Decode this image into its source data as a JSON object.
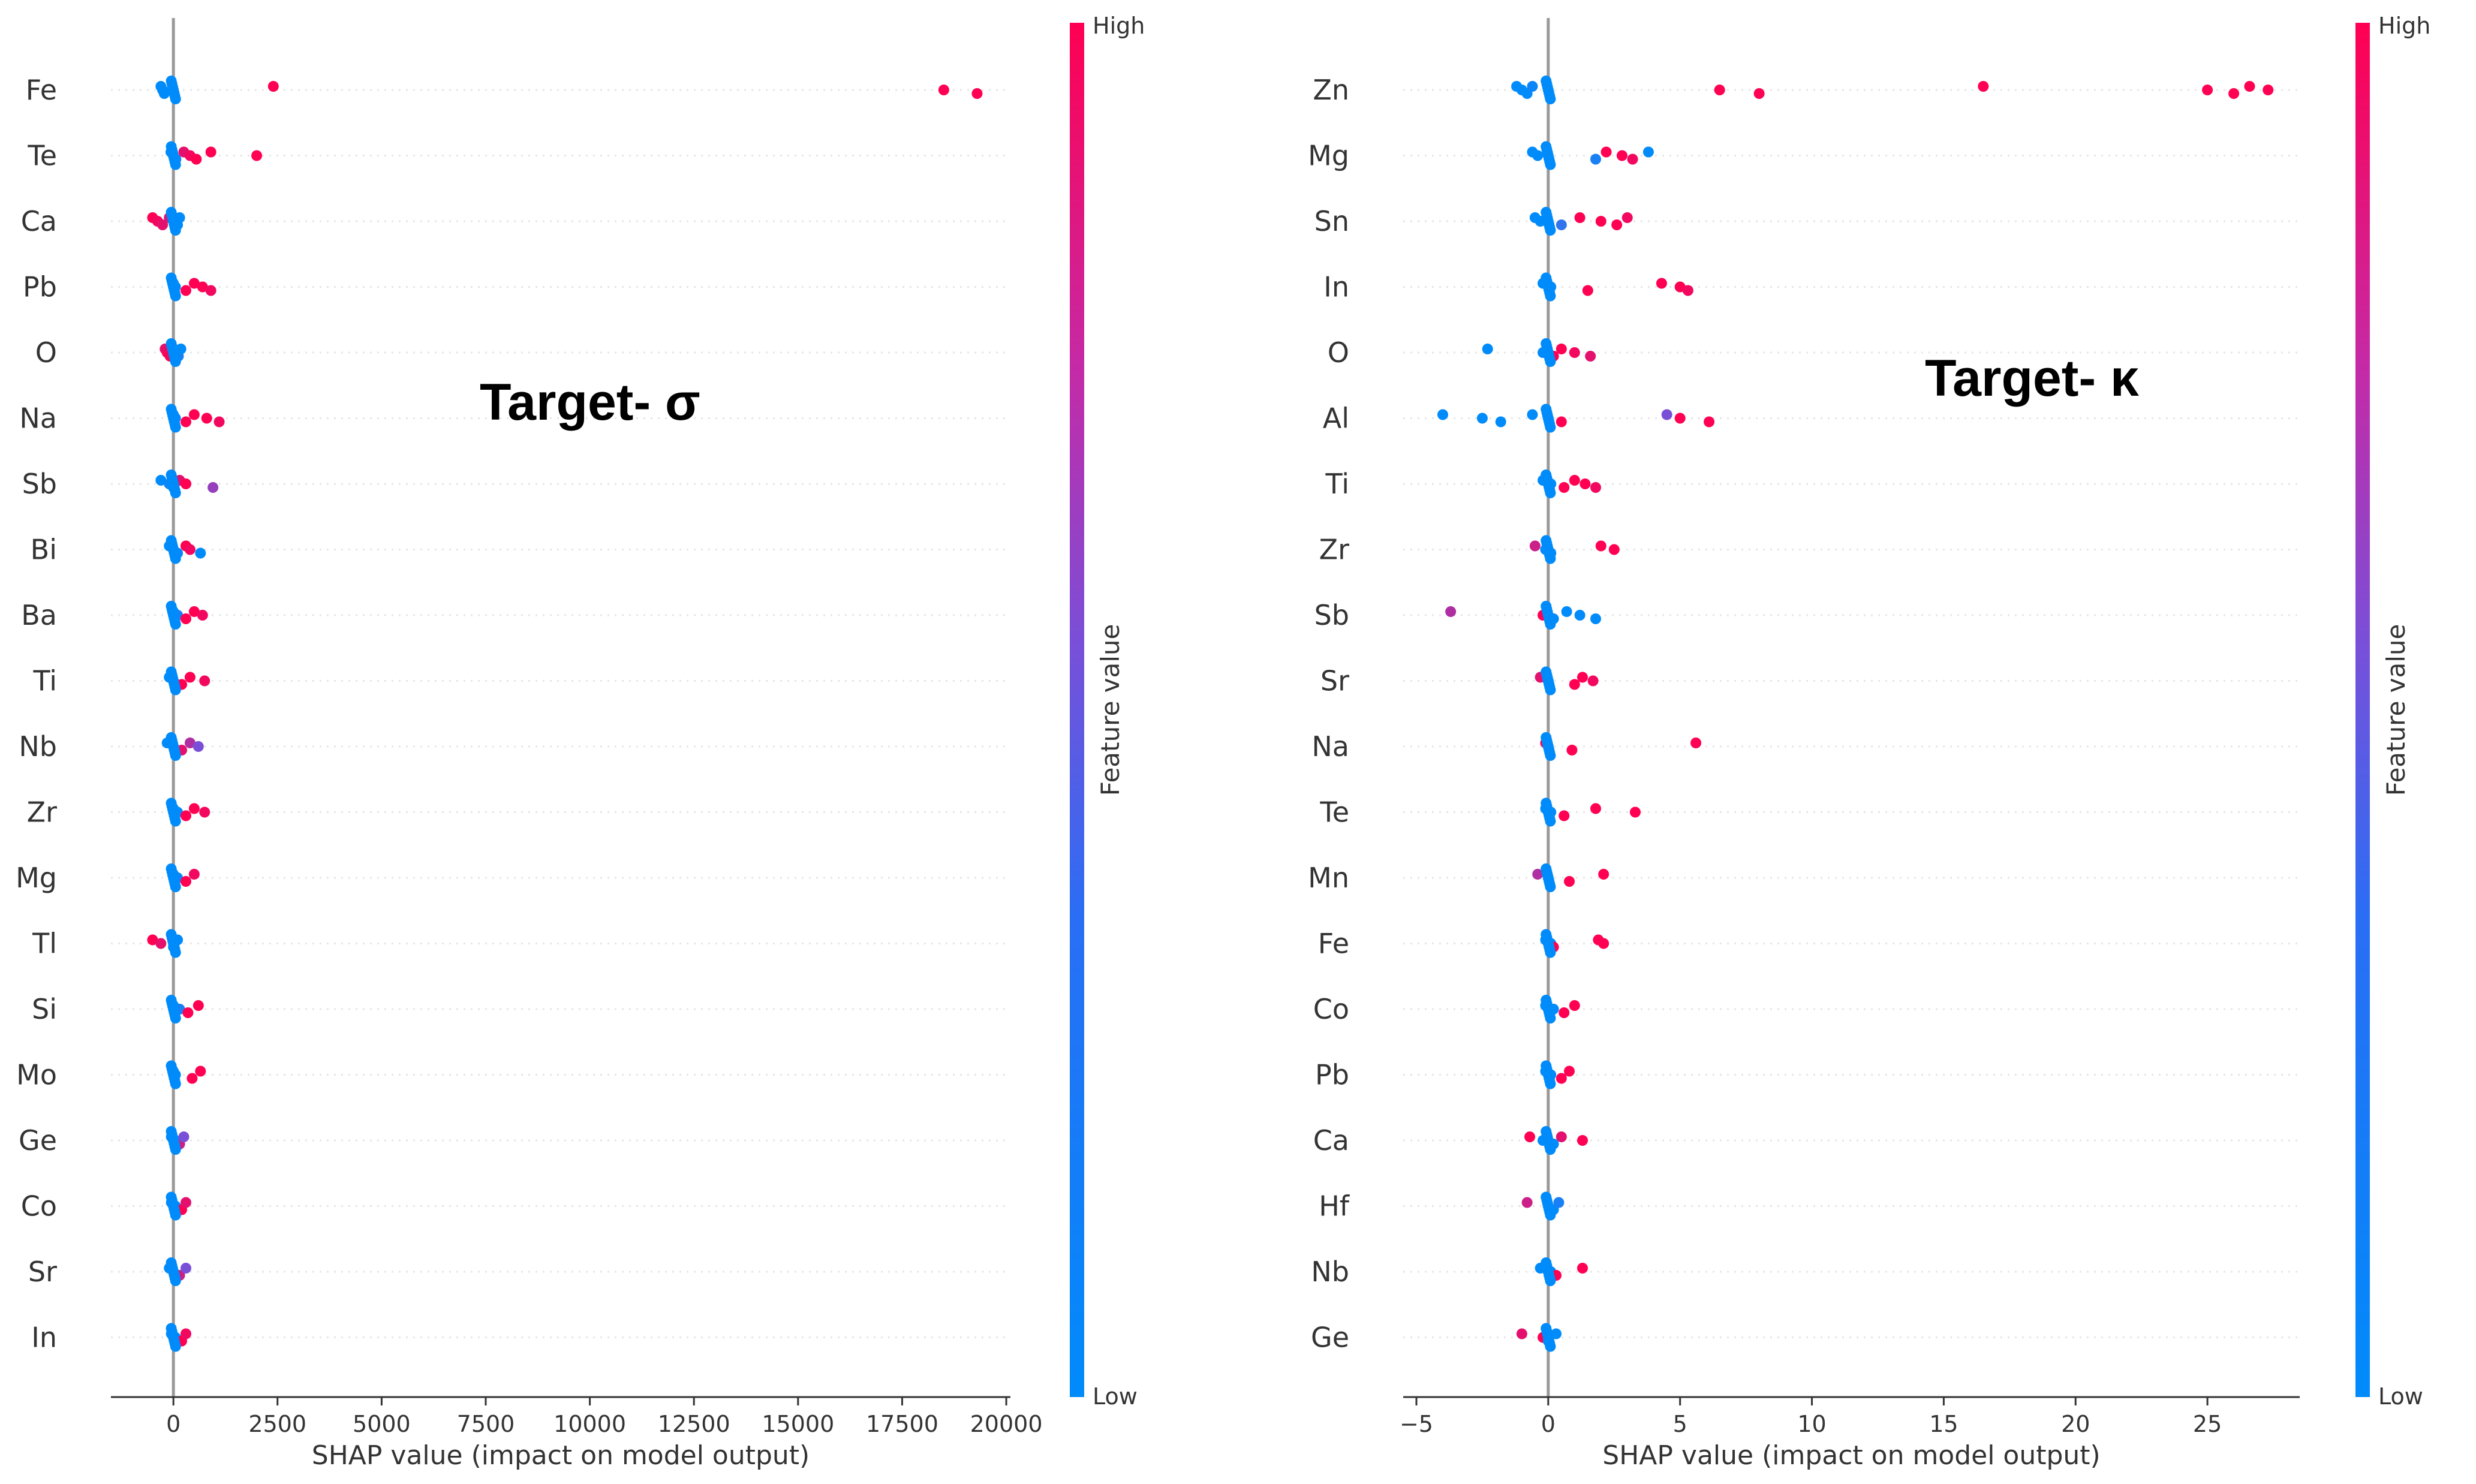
{
  "chart_data": [
    {
      "type": "scatter",
      "subtype": "shap-beeswarm",
      "title": "",
      "annotation": "Target- σ",
      "xlabel": "SHAP value (impact on model output)",
      "ylabel": "",
      "xlim": [
        -1500,
        20100
      ],
      "xticks": [
        0,
        2500,
        5000,
        7500,
        10000,
        12500,
        15000,
        17500,
        20000
      ],
      "grid": false,
      "colorbar": {
        "title": "Feature value",
        "high_label": "High",
        "low_label": "Low",
        "low_color": "#008bfb",
        "high_color": "#ff0052"
      },
      "features": [
        {
          "name": "Fe",
          "points": [
            [
              -300,
              0.0
            ],
            [
              -260,
              0.0
            ],
            [
              -220,
              0.0
            ],
            [
              2400,
              1.0
            ],
            [
              18500,
              1.0
            ],
            [
              19300,
              1.0
            ]
          ]
        },
        {
          "name": "Te",
          "points": [
            [
              -60,
              0.0
            ],
            [
              0,
              0.0
            ],
            [
              60,
              0.05
            ],
            [
              250,
              0.9
            ],
            [
              400,
              0.95
            ],
            [
              550,
              1.0
            ],
            [
              900,
              1.0
            ],
            [
              2000,
              1.0
            ]
          ]
        },
        {
          "name": "Ca",
          "points": [
            [
              -500,
              1.0
            ],
            [
              -380,
              0.95
            ],
            [
              -260,
              0.9
            ],
            [
              -100,
              0.85
            ],
            [
              50,
              0.1
            ],
            [
              100,
              0.0
            ],
            [
              150,
              0.0
            ]
          ]
        },
        {
          "name": "Pb",
          "points": [
            [
              0,
              0.0
            ],
            [
              50,
              0.0
            ],
            [
              300,
              1.0
            ],
            [
              500,
              1.0
            ],
            [
              700,
              1.0
            ],
            [
              900,
              0.95
            ]
          ]
        },
        {
          "name": "O",
          "points": [
            [
              -200,
              0.9
            ],
            [
              -150,
              0.95
            ],
            [
              -80,
              1.0
            ],
            [
              0,
              1.0
            ],
            [
              60,
              0.9
            ],
            [
              120,
              0.1
            ],
            [
              180,
              0.0
            ]
          ]
        },
        {
          "name": "Na",
          "points": [
            [
              0,
              0.0
            ],
            [
              50,
              0.05
            ],
            [
              300,
              1.0
            ],
            [
              500,
              1.0
            ],
            [
              800,
              1.0
            ],
            [
              1100,
              0.95
            ]
          ]
        },
        {
          "name": "Sb",
          "points": [
            [
              -300,
              0.0
            ],
            [
              -100,
              0.05
            ],
            [
              0,
              0.0
            ],
            [
              150,
              0.9
            ],
            [
              300,
              1.0
            ],
            [
              950,
              0.6
            ]
          ]
        },
        {
          "name": "Bi",
          "points": [
            [
              -100,
              0.0
            ],
            [
              0,
              0.0
            ],
            [
              100,
              0.05
            ],
            [
              300,
              1.0
            ],
            [
              400,
              0.95
            ],
            [
              650,
              0.0
            ]
          ]
        },
        {
          "name": "Ba",
          "points": [
            [
              0,
              0.0
            ],
            [
              100,
              0.1
            ],
            [
              300,
              1.0
            ],
            [
              500,
              1.0
            ],
            [
              700,
              0.95
            ]
          ]
        },
        {
          "name": "Ti",
          "points": [
            [
              -100,
              0.0
            ],
            [
              0,
              0.0
            ],
            [
              200,
              1.0
            ],
            [
              400,
              1.0
            ],
            [
              750,
              0.95
            ]
          ]
        },
        {
          "name": "Nb",
          "points": [
            [
              -150,
              0.0
            ],
            [
              0,
              0.05
            ],
            [
              200,
              0.9
            ],
            [
              400,
              0.7
            ],
            [
              600,
              0.5
            ]
          ]
        },
        {
          "name": "Zr",
          "points": [
            [
              0,
              0.0
            ],
            [
              100,
              0.0
            ],
            [
              300,
              1.0
            ],
            [
              500,
              1.0
            ],
            [
              750,
              0.95
            ]
          ]
        },
        {
          "name": "Mg",
          "points": [
            [
              0,
              0.0
            ],
            [
              100,
              0.05
            ],
            [
              300,
              1.0
            ],
            [
              500,
              0.95
            ]
          ]
        },
        {
          "name": "Tl",
          "points": [
            [
              -500,
              1.0
            ],
            [
              -300,
              0.9
            ],
            [
              0,
              0.0
            ],
            [
              100,
              0.0
            ]
          ]
        },
        {
          "name": "Si",
          "points": [
            [
              0,
              0.0
            ],
            [
              150,
              0.1
            ],
            [
              350,
              1.0
            ],
            [
              600,
              1.0
            ]
          ]
        },
        {
          "name": "Mo",
          "points": [
            [
              0,
              0.0
            ],
            [
              50,
              0.0
            ],
            [
              450,
              1.0
            ],
            [
              650,
              1.0
            ]
          ]
        },
        {
          "name": "Ge",
          "points": [
            [
              -50,
              0.0
            ],
            [
              50,
              0.0
            ],
            [
              150,
              0.8
            ],
            [
              250,
              0.5
            ]
          ]
        },
        {
          "name": "Co",
          "points": [
            [
              -50,
              0.0
            ],
            [
              50,
              0.0
            ],
            [
              200,
              1.0
            ],
            [
              300,
              0.9
            ]
          ]
        },
        {
          "name": "Sr",
          "points": [
            [
              -100,
              0.0
            ],
            [
              0,
              0.0
            ],
            [
              150,
              0.8
            ],
            [
              300,
              0.5
            ]
          ]
        },
        {
          "name": "In",
          "points": [
            [
              -50,
              0.0
            ],
            [
              50,
              0.0
            ],
            [
              200,
              1.0
            ],
            [
              300,
              0.95
            ]
          ]
        }
      ]
    },
    {
      "type": "scatter",
      "subtype": "shap-beeswarm",
      "title": "",
      "annotation": "Target- κ",
      "xlabel": "SHAP value (impact on model output)",
      "ylabel": "",
      "xlim": [
        -5.5,
        28.5
      ],
      "xticks": [
        -5,
        0,
        5,
        10,
        15,
        20,
        25
      ],
      "grid": false,
      "colorbar": {
        "title": "Feature value",
        "high_label": "High",
        "low_label": "Low",
        "low_color": "#008bfb",
        "high_color": "#ff0052"
      },
      "features": [
        {
          "name": "Zn",
          "points": [
            [
              -1.2,
              0.0
            ],
            [
              -1.0,
              0.0
            ],
            [
              -0.8,
              0.0
            ],
            [
              -0.6,
              0.05
            ],
            [
              6.5,
              1.0
            ],
            [
              8.0,
              1.0
            ],
            [
              16.5,
              1.0
            ],
            [
              25.0,
              1.0
            ],
            [
              26.0,
              1.0
            ],
            [
              26.6,
              1.0
            ],
            [
              27.3,
              1.0
            ]
          ]
        },
        {
          "name": "Mg",
          "points": [
            [
              -0.6,
              0.0
            ],
            [
              -0.4,
              0.0
            ],
            [
              1.8,
              0.1
            ],
            [
              2.2,
              1.0
            ],
            [
              2.8,
              1.0
            ],
            [
              3.2,
              0.95
            ],
            [
              3.8,
              0.0
            ]
          ]
        },
        {
          "name": "Sn",
          "points": [
            [
              -0.5,
              0.0
            ],
            [
              -0.3,
              0.0
            ],
            [
              0.5,
              0.2
            ],
            [
              1.2,
              1.0
            ],
            [
              2.0,
              1.0
            ],
            [
              2.6,
              1.0
            ],
            [
              3.0,
              0.95
            ]
          ]
        },
        {
          "name": "In",
          "points": [
            [
              -0.2,
              0.0
            ],
            [
              0.1,
              0.0
            ],
            [
              1.5,
              1.0
            ],
            [
              4.3,
              1.0
            ],
            [
              5.0,
              1.0
            ],
            [
              5.3,
              0.95
            ]
          ]
        },
        {
          "name": "O",
          "points": [
            [
              -2.3,
              0.0
            ],
            [
              -0.2,
              0.0
            ],
            [
              0.2,
              1.0
            ],
            [
              0.5,
              1.0
            ],
            [
              1.0,
              0.95
            ],
            [
              1.6,
              0.9
            ]
          ]
        },
        {
          "name": "Al",
          "points": [
            [
              -4.0,
              0.0
            ],
            [
              -2.5,
              0.0
            ],
            [
              -1.8,
              0.0
            ],
            [
              -0.6,
              0.0
            ],
            [
              0.0,
              0.05
            ],
            [
              0.5,
              1.0
            ],
            [
              4.5,
              0.5
            ],
            [
              5.0,
              1.0
            ],
            [
              6.1,
              1.0
            ]
          ]
        },
        {
          "name": "Ti",
          "points": [
            [
              -0.2,
              0.0
            ],
            [
              0.1,
              0.0
            ],
            [
              0.6,
              1.0
            ],
            [
              1.0,
              1.0
            ],
            [
              1.4,
              1.0
            ],
            [
              1.8,
              0.95
            ]
          ]
        },
        {
          "name": "Zr",
          "points": [
            [
              -0.5,
              0.8
            ],
            [
              -0.1,
              0.0
            ],
            [
              0.1,
              0.0
            ],
            [
              2.0,
              1.0
            ],
            [
              2.5,
              1.0
            ]
          ]
        },
        {
          "name": "Sb",
          "points": [
            [
              -3.7,
              0.7
            ],
            [
              -0.2,
              1.0
            ],
            [
              0.2,
              0.0
            ],
            [
              0.7,
              0.0
            ],
            [
              1.2,
              0.0
            ],
            [
              1.8,
              0.0
            ]
          ]
        },
        {
          "name": "Sr",
          "points": [
            [
              -0.3,
              0.9
            ],
            [
              0.0,
              0.0
            ],
            [
              1.0,
              1.0
            ],
            [
              1.3,
              1.0
            ],
            [
              1.7,
              0.95
            ]
          ]
        },
        {
          "name": "Na",
          "points": [
            [
              -0.1,
              1.0
            ],
            [
              0.0,
              0.0
            ],
            [
              0.9,
              1.0
            ],
            [
              5.6,
              1.0
            ]
          ]
        },
        {
          "name": "Te",
          "points": [
            [
              -0.1,
              0.0
            ],
            [
              0.1,
              0.0
            ],
            [
              0.6,
              1.0
            ],
            [
              1.8,
              1.0
            ],
            [
              3.3,
              1.0
            ]
          ]
        },
        {
          "name": "Mn",
          "points": [
            [
              -0.4,
              0.7
            ],
            [
              0.0,
              0.0
            ],
            [
              0.8,
              1.0
            ],
            [
              2.1,
              1.0
            ]
          ]
        },
        {
          "name": "Fe",
          "points": [
            [
              -0.1,
              0.0
            ],
            [
              0.1,
              0.0
            ],
            [
              0.2,
              1.0
            ],
            [
              1.9,
              1.0
            ],
            [
              2.1,
              1.0
            ]
          ]
        },
        {
          "name": "Co",
          "points": [
            [
              -0.1,
              0.0
            ],
            [
              0.2,
              0.0
            ],
            [
              0.6,
              1.0
            ],
            [
              1.0,
              1.0
            ]
          ]
        },
        {
          "name": "Pb",
          "points": [
            [
              -0.1,
              0.0
            ],
            [
              0.1,
              0.0
            ],
            [
              0.5,
              1.0
            ],
            [
              0.8,
              1.0
            ]
          ]
        },
        {
          "name": "Ca",
          "points": [
            [
              -0.7,
              1.0
            ],
            [
              -0.2,
              0.0
            ],
            [
              0.2,
              0.0
            ],
            [
              0.5,
              0.9
            ],
            [
              1.3,
              1.0
            ]
          ]
        },
        {
          "name": "Hf",
          "points": [
            [
              -0.8,
              0.8
            ],
            [
              0.0,
              0.0
            ],
            [
              0.2,
              0.0
            ],
            [
              0.4,
              0.1
            ]
          ]
        },
        {
          "name": "Nb",
          "points": [
            [
              -0.3,
              0.0
            ],
            [
              0.1,
              0.0
            ],
            [
              0.3,
              1.0
            ],
            [
              1.3,
              1.0
            ]
          ]
        },
        {
          "name": "Ge",
          "points": [
            [
              -1.0,
              0.9
            ],
            [
              -0.2,
              1.0
            ],
            [
              0.0,
              0.0
            ],
            [
              0.3,
              0.0
            ]
          ]
        }
      ]
    }
  ]
}
